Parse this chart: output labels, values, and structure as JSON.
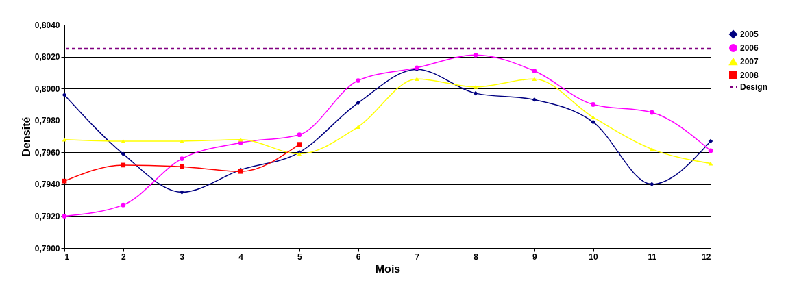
{
  "chart_data": {
    "type": "line",
    "xlabel": "Mois",
    "ylabel": "Densité",
    "x": [
      1,
      2,
      3,
      4,
      5,
      6,
      7,
      8,
      9,
      10,
      11,
      12
    ],
    "series": [
      {
        "name": "2005",
        "color": "#000080",
        "marker": "diamond",
        "values": [
          0.7996,
          0.7959,
          0.7935,
          0.7949,
          0.796,
          0.7991,
          0.8012,
          0.7997,
          0.7993,
          0.7979,
          0.794,
          0.7967
        ]
      },
      {
        "name": "2006",
        "color": "#ff00ff",
        "marker": "circle",
        "values": [
          0.792,
          0.7927,
          0.7956,
          0.7966,
          0.7971,
          0.8005,
          0.8013,
          0.8021,
          0.8011,
          0.799,
          0.7985,
          0.7961
        ]
      },
      {
        "name": "2007",
        "color": "#ffff00",
        "marker": "triangle",
        "values": [
          0.7968,
          0.7967,
          0.7967,
          0.7968,
          0.7959,
          0.7976,
          0.8006,
          0.8001,
          0.8006,
          0.7982,
          0.7962,
          0.7953
        ]
      },
      {
        "name": "2008",
        "color": "#ff0000",
        "marker": "square",
        "values": [
          0.7942,
          0.7952,
          0.7951,
          0.7948,
          0.7965,
          null,
          null,
          null,
          null,
          null,
          null,
          null
        ]
      }
    ],
    "ref_lines": [
      {
        "axis": "y",
        "value": 0.8025,
        "label": "Design",
        "color": "#800080",
        "line_style": "dashed"
      }
    ],
    "xlim": [
      1,
      12
    ],
    "xticks": [
      1,
      2,
      3,
      4,
      5,
      6,
      7,
      8,
      9,
      10,
      11,
      12
    ],
    "ylim": [
      0.79,
      0.804
    ],
    "yticks": [
      {
        "value": 0.79,
        "label": "0,7900"
      },
      {
        "value": 0.792,
        "label": "0,7920"
      },
      {
        "value": 0.794,
        "label": "0,7940"
      },
      {
        "value": 0.796,
        "label": "0,7960"
      },
      {
        "value": 0.798,
        "label": "0,7980"
      },
      {
        "value": 0.8,
        "label": "0,8000"
      },
      {
        "value": 0.802,
        "label": "0,8020"
      },
      {
        "value": 0.804,
        "label": "0,8040"
      }
    ],
    "grid": "y",
    "legend": "right",
    "line_style": "solid"
  }
}
